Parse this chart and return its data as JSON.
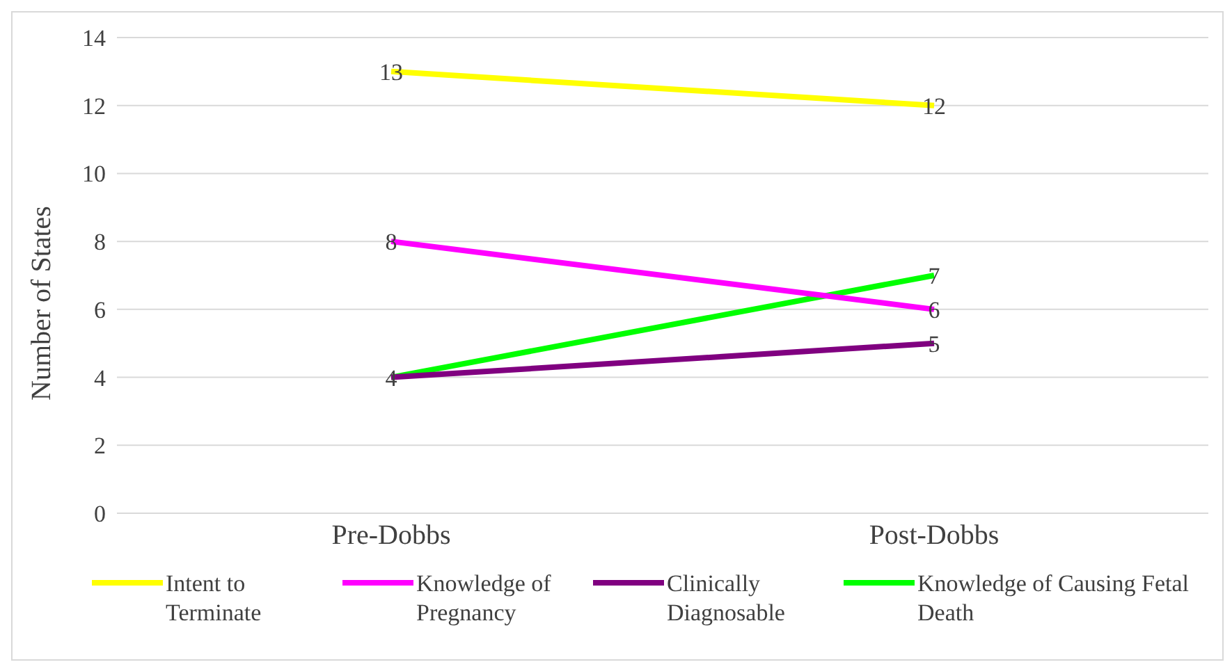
{
  "chart_data": {
    "type": "line",
    "ylabel": "Number of States",
    "categories": [
      "Pre-Dobbs",
      "Post-Dobbs"
    ],
    "series": [
      {
        "name": "Intent to Terminate",
        "color": "#ffff00",
        "values": [
          13,
          12
        ],
        "value_labels": [
          "13",
          "12"
        ]
      },
      {
        "name": "Knowledge of Pregnancy",
        "color": "#ff00ff",
        "values": [
          8,
          6
        ],
        "value_labels": [
          "8",
          "6"
        ]
      },
      {
        "name": "Clinically Diagnosable",
        "color": "#800080",
        "values": [
          4,
          5
        ],
        "value_labels": [
          "4",
          "5"
        ]
      },
      {
        "name": "Knowledge of Causing Fetal Death",
        "color": "#00ff00",
        "values": [
          4,
          7
        ],
        "value_labels": [
          null,
          "7"
        ]
      }
    ],
    "ylim": [
      0,
      14
    ],
    "yticks": [
      0,
      2,
      4,
      6,
      8,
      10,
      12,
      14
    ],
    "grid": "y",
    "legend": "bottom",
    "marker": "none",
    "line_style": "solid"
  }
}
